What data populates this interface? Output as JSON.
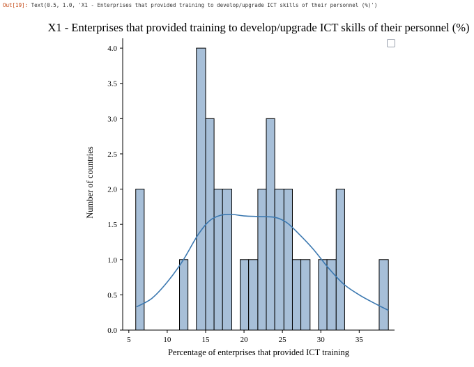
{
  "cell": {
    "prompt": "Out[19]:",
    "output": "Text(0.5, 1.0, 'X1 - Enterprises that provided training to develop/upgrade ICT skills of their personnel (%)')"
  },
  "chart_data": {
    "type": "bar",
    "title": "X1 - Enterprises that provided training to develop/upgrade ICT skills of their personnel (%)",
    "xlabel": "Percentage of enterprises that provided ICT training",
    "ylabel": "Number of countries",
    "xlim": [
      4.2,
      39.6
    ],
    "ylim": [
      0,
      4.1
    ],
    "xticks": [
      5,
      10,
      15,
      20,
      25,
      30,
      35
    ],
    "yticks": [
      0.0,
      0.5,
      1.0,
      1.5,
      2.0,
      2.5,
      3.0,
      3.5,
      4.0
    ],
    "bins": [
      {
        "x0": 5.9,
        "x1": 7.0,
        "count": 2
      },
      {
        "x0": 11.6,
        "x1": 12.7,
        "count": 1
      },
      {
        "x0": 13.8,
        "x1": 15.0,
        "count": 4
      },
      {
        "x0": 15.0,
        "x1": 16.1,
        "count": 3
      },
      {
        "x0": 16.1,
        "x1": 17.2,
        "count": 2
      },
      {
        "x0": 17.2,
        "x1": 18.4,
        "count": 2
      },
      {
        "x0": 19.5,
        "x1": 20.6,
        "count": 1
      },
      {
        "x0": 20.6,
        "x1": 21.8,
        "count": 1
      },
      {
        "x0": 21.8,
        "x1": 22.9,
        "count": 2
      },
      {
        "x0": 22.9,
        "x1": 24.0,
        "count": 3
      },
      {
        "x0": 24.0,
        "x1": 25.2,
        "count": 2
      },
      {
        "x0": 25.2,
        "x1": 26.3,
        "count": 2
      },
      {
        "x0": 26.3,
        "x1": 27.4,
        "count": 1
      },
      {
        "x0": 27.4,
        "x1": 28.6,
        "count": 1
      },
      {
        "x0": 29.7,
        "x1": 30.8,
        "count": 1
      },
      {
        "x0": 30.8,
        "x1": 32.0,
        "count": 1
      },
      {
        "x0": 32.0,
        "x1": 33.1,
        "count": 2
      },
      {
        "x0": 37.6,
        "x1": 38.8,
        "count": 1
      }
    ],
    "kde": {
      "x": [
        6.0,
        8.0,
        10.0,
        12.0,
        14.0,
        15.5,
        17.0,
        18.5,
        20.0,
        22.0,
        24.0,
        25.5,
        27.0,
        29.0,
        31.0,
        33.0,
        35.0,
        37.0,
        38.8
      ],
      "y": [
        0.33,
        0.45,
        0.68,
        0.98,
        1.35,
        1.55,
        1.63,
        1.64,
        1.62,
        1.61,
        1.6,
        1.53,
        1.38,
        1.15,
        0.88,
        0.65,
        0.5,
        0.38,
        0.28
      ]
    },
    "colors": {
      "bar_fill": "#a7bfd8",
      "bar_edge": "#000000",
      "kde_line": "#3b78b0"
    },
    "grid": false,
    "legend": "none"
  }
}
